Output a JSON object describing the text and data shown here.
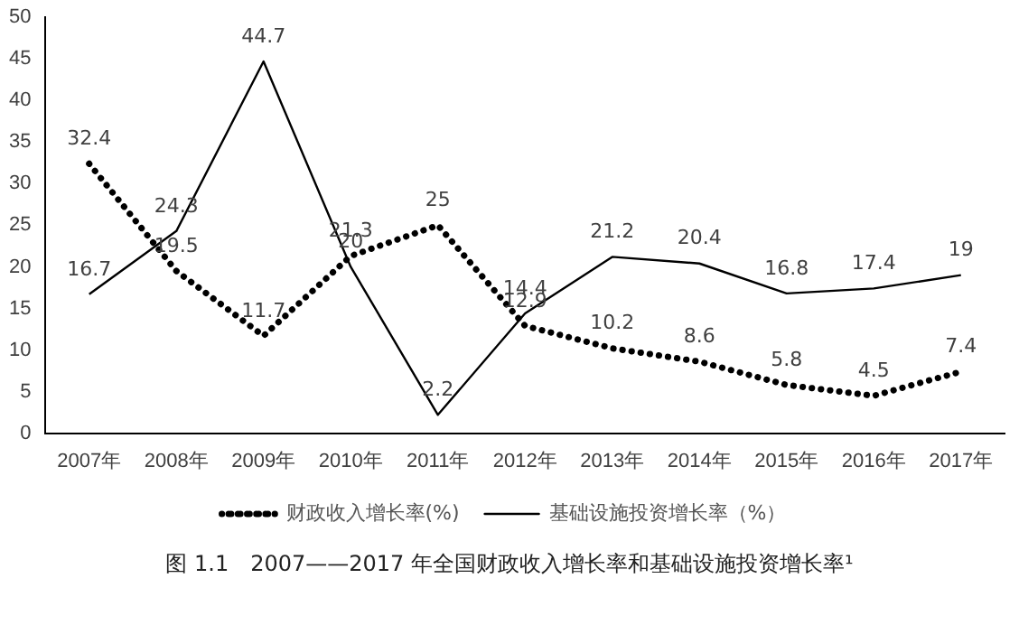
{
  "chart_data": {
    "type": "line",
    "categories": [
      "2007年",
      "2008年",
      "2009年",
      "2010年",
      "2011年",
      "2012年",
      "2013年",
      "2014年",
      "2015年",
      "2016年",
      "2017年"
    ],
    "series": [
      {
        "name": "财政收入增长率(%)",
        "color": "#000000",
        "line_style": "dotted",
        "values": [
          32.4,
          19.5,
          11.7,
          21.3,
          25,
          12.9,
          10.2,
          8.6,
          5.8,
          4.5,
          7.4
        ]
      },
      {
        "name": "基础设施投资增长率（%）",
        "color": "#000000",
        "line_style": "solid",
        "values": [
          16.7,
          24.3,
          44.7,
          20,
          2.2,
          14.4,
          21.2,
          20.4,
          16.8,
          17.4,
          19
        ]
      }
    ],
    "ylim": [
      0,
      50
    ],
    "yticks": [
      0,
      5,
      10,
      15,
      20,
      25,
      30,
      35,
      40,
      45,
      50
    ],
    "grid": false,
    "legend": "bottom",
    "marker": "none",
    "data_labels": true,
    "annotations": [
      "图 1.1　2007——2017 年全国财政收入增长率和基础设施投资增长率¹"
    ]
  }
}
